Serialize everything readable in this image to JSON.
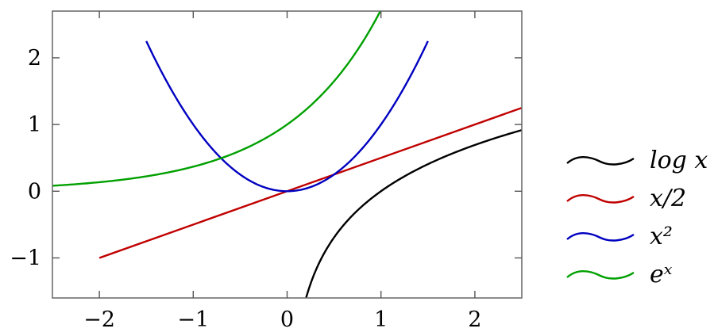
{
  "chart_data": {
    "type": "line",
    "title": "",
    "xlabel": "",
    "ylabel": "",
    "xlim": [
      -2.5,
      2.5
    ],
    "ylim": [
      -1.6,
      2.7
    ],
    "x_ticks": [
      -2,
      -1,
      0,
      1,
      2
    ],
    "y_ticks": [
      -1,
      0,
      1,
      2
    ],
    "x_tick_labels": [
      "−2",
      "−1",
      "0",
      "1",
      "2"
    ],
    "y_tick_labels": [
      "−1",
      "0",
      "1",
      "2"
    ],
    "grid": false,
    "legend_position": "outside-right",
    "series": [
      {
        "name": "log x",
        "color": "#000000",
        "x": [
          0.2,
          0.25,
          0.3,
          0.4,
          0.5,
          0.6,
          0.8,
          1.0,
          1.25,
          1.5,
          1.75,
          2.0,
          2.25,
          2.5
        ],
        "y": [
          -1.609,
          -1.386,
          -1.204,
          -0.916,
          -0.693,
          -0.511,
          -0.223,
          0.0,
          0.223,
          0.405,
          0.56,
          0.693,
          0.811,
          0.916
        ]
      },
      {
        "name": "x/2",
        "color": "#c00000",
        "x": [
          -2.0,
          2.5
        ],
        "y": [
          -1.0,
          1.25
        ]
      },
      {
        "name": "x^2",
        "color": "#0000c0",
        "x": [
          -1.5,
          -1.25,
          -1.0,
          -0.75,
          -0.5,
          -0.25,
          0.0,
          0.25,
          0.5,
          0.75,
          1.0,
          1.25,
          1.5
        ],
        "y": [
          2.25,
          1.5625,
          1.0,
          0.5625,
          0.25,
          0.0625,
          0.0,
          0.0625,
          0.25,
          0.5625,
          1.0,
          1.5625,
          2.25
        ]
      },
      {
        "name": "e^x",
        "color": "#00a000",
        "x": [
          -2.5,
          -2.0,
          -1.5,
          -1.0,
          -0.75,
          -0.5,
          -0.25,
          0.0,
          0.25,
          0.5,
          0.75,
          1.0
        ],
        "y": [
          0.082,
          0.135,
          0.223,
          0.368,
          0.472,
          0.607,
          0.779,
          1.0,
          1.284,
          1.649,
          2.117,
          2.718
        ]
      }
    ]
  }
}
